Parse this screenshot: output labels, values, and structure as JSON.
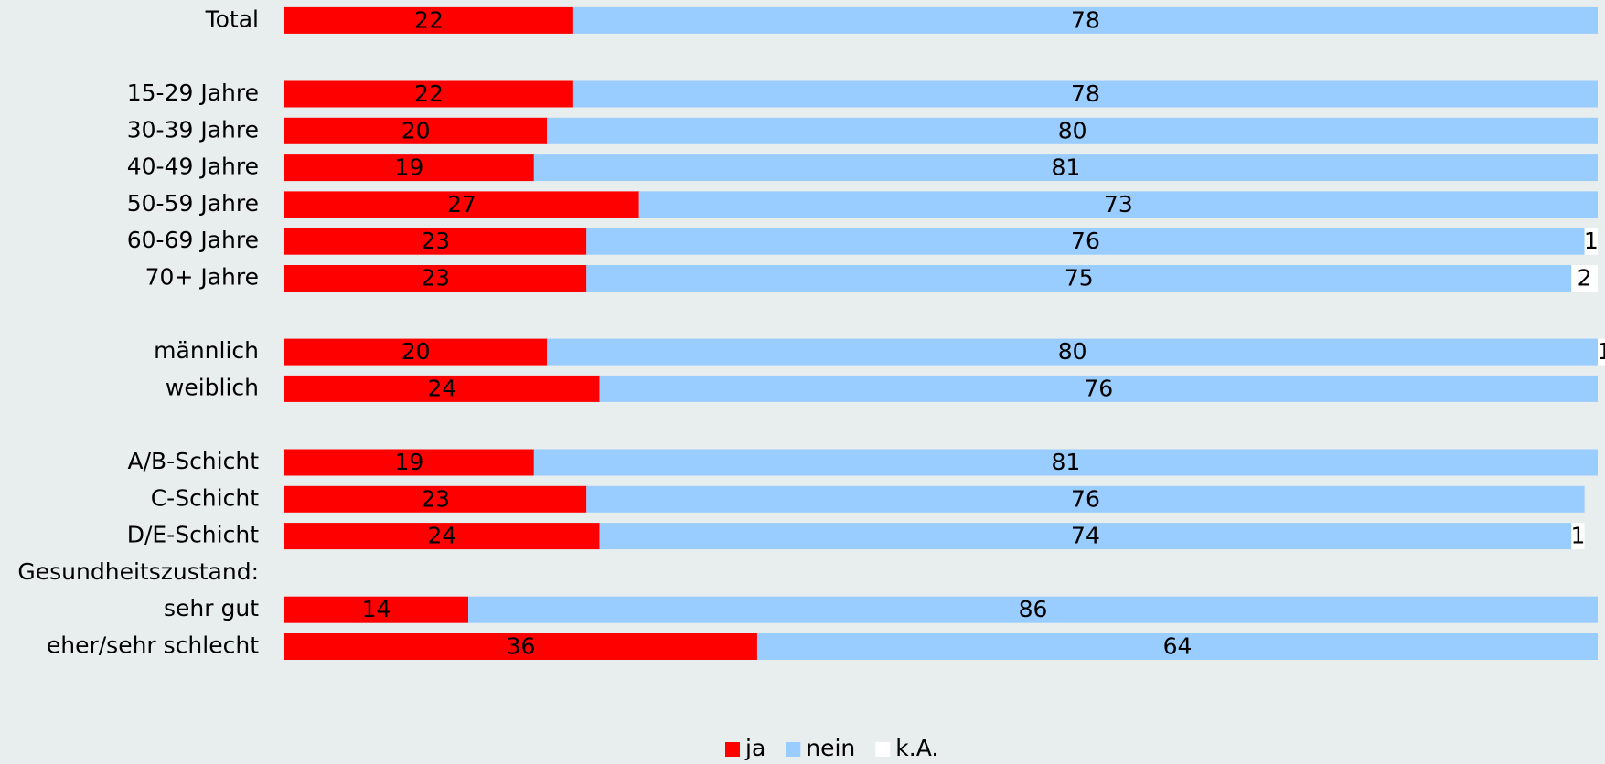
{
  "chart_data": {
    "type": "stacked_bar_horizontal",
    "categories": [
      "Total",
      null,
      "15-29 Jahre",
      "30-39 Jahre",
      "40-49 Jahre",
      "50-59 Jahre",
      "60-69 Jahre",
      "70+ Jahre",
      null,
      "männlich",
      "weiblich",
      null,
      "A/B-Schicht",
      "C-Schicht",
      "D/E-Schicht",
      "Gesundheitszustand:",
      "sehr gut",
      "eher/sehr schlecht"
    ],
    "series": [
      {
        "name": "ja",
        "color": "#ff0000",
        "values": [
          22,
          null,
          22,
          20,
          19,
          27,
          23,
          23,
          null,
          20,
          24,
          null,
          19,
          23,
          24,
          null,
          14,
          36
        ]
      },
      {
        "name": "nein",
        "color": "#99ccff",
        "values": [
          78,
          null,
          78,
          80,
          81,
          73,
          76,
          75,
          null,
          80,
          76,
          null,
          81,
          76,
          74,
          null,
          86,
          64
        ]
      },
      {
        "name": "k.A.",
        "color": "#ffffff",
        "values": [
          null,
          null,
          null,
          null,
          null,
          null,
          1,
          2,
          null,
          1,
          null,
          null,
          null,
          null,
          1,
          null,
          null,
          null
        ]
      }
    ],
    "xlim": [
      0,
      100
    ],
    "legend": "bottom"
  }
}
